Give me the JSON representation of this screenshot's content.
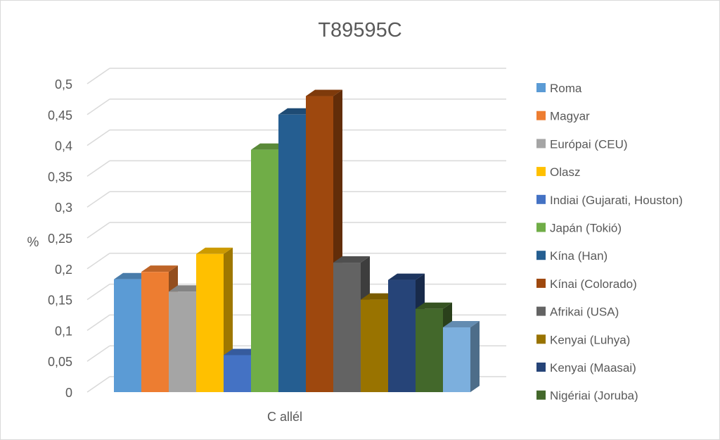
{
  "chart_data": {
    "type": "bar",
    "title": "T89595C",
    "ylabel": "%",
    "xlabel": "",
    "categories": [
      "C allél"
    ],
    "ylim": [
      0,
      0.5
    ],
    "yticks": [
      "0",
      "0,05",
      "0,1",
      "0,15",
      "0,2",
      "0,25",
      "0,3",
      "0,35",
      "0,4",
      "0,45",
      "0,5"
    ],
    "grid": true,
    "legend_position": "right",
    "series": [
      {
        "name": "Roma",
        "values": [
          0.183
        ],
        "color": "#5b9bd5"
      },
      {
        "name": "Magyar",
        "values": [
          0.195
        ],
        "color": "#ed7d31"
      },
      {
        "name": "Európai (CEU)",
        "values": [
          0.163
        ],
        "color": "#a5a5a5"
      },
      {
        "name": "Olasz",
        "values": [
          0.224
        ],
        "color": "#ffc000"
      },
      {
        "name": "Indiai (Gujarati, Houston)",
        "values": [
          0.06
        ],
        "color": "#4472c4"
      },
      {
        "name": "Japán (Tokió)",
        "values": [
          0.393
        ],
        "color": "#70ad47"
      },
      {
        "name": "Kína (Han)",
        "values": [
          0.45
        ],
        "color": "#255e91"
      },
      {
        "name": "Kínai (Colorado)",
        "values": [
          0.48
        ],
        "color": "#9e480e"
      },
      {
        "name": "Afrikai (USA)",
        "values": [
          0.21
        ],
        "color": "#636363"
      },
      {
        "name": "Kenyai (Luhya)",
        "values": [
          0.15
        ],
        "color": "#997300"
      },
      {
        "name": "Kenyai (Maasai)",
        "values": [
          0.182
        ],
        "color": "#264478"
      },
      {
        "name": "Nigériai (Joruba)",
        "values": [
          0.135
        ],
        "color": "#43682b"
      },
      {
        "name": "",
        "values": [
          0.105
        ],
        "color": "#7cafdd"
      }
    ]
  }
}
